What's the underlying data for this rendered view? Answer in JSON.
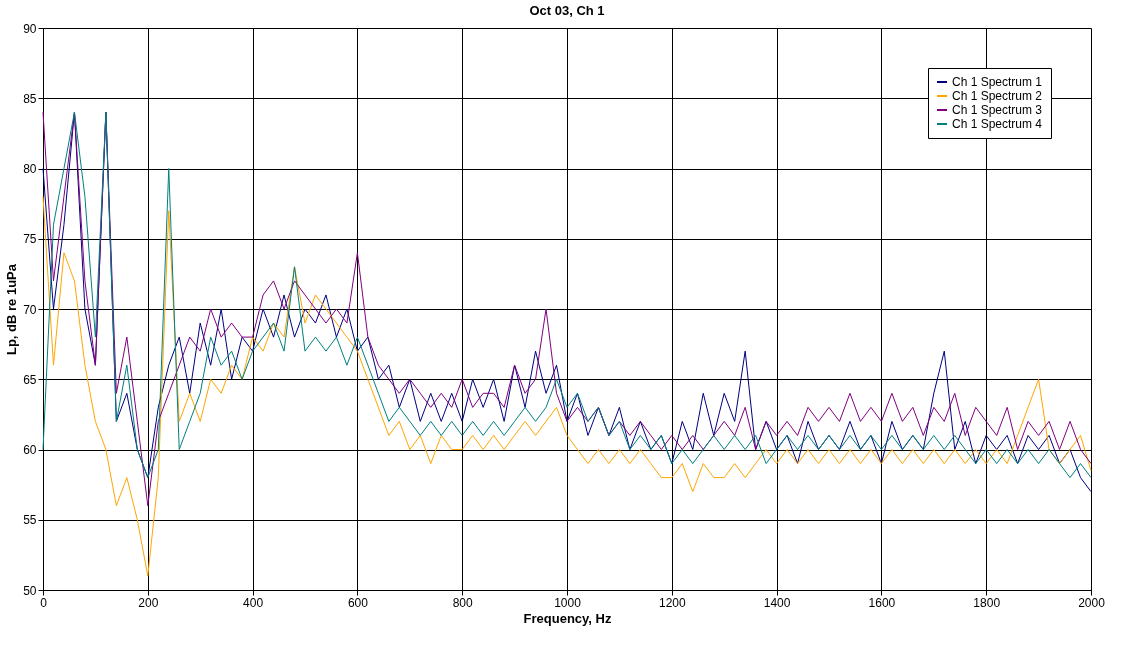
{
  "chart_data": {
    "type": "line",
    "title": "Oct 03, Ch 1",
    "xlabel": "Frequency, Hz",
    "ylabel": "Lp, dB re 1uPa",
    "x": [
      0,
      20,
      40,
      60,
      80,
      100,
      120,
      140,
      160,
      180,
      200,
      220,
      240,
      260,
      280,
      300,
      320,
      340,
      360,
      380,
      400,
      420,
      440,
      460,
      480,
      500,
      520,
      540,
      560,
      580,
      600,
      620,
      640,
      660,
      680,
      700,
      720,
      740,
      760,
      780,
      800,
      820,
      840,
      860,
      880,
      900,
      920,
      940,
      960,
      980,
      1000,
      1020,
      1040,
      1060,
      1080,
      1100,
      1120,
      1140,
      1160,
      1180,
      1200,
      1220,
      1240,
      1260,
      1280,
      1300,
      1320,
      1340,
      1360,
      1380,
      1400,
      1420,
      1440,
      1460,
      1480,
      1500,
      1520,
      1540,
      1560,
      1580,
      1600,
      1620,
      1640,
      1660,
      1680,
      1700,
      1720,
      1740,
      1760,
      1780,
      1800,
      1820,
      1840,
      1860,
      1880,
      1900,
      1920,
      1940,
      1960,
      1980,
      2000
    ],
    "series": [
      {
        "name": "Ch 1 Spectrum 1",
        "color": "#000080",
        "values": [
          80,
          70,
          76,
          84,
          70,
          66,
          84,
          62,
          64,
          60,
          58,
          63,
          66,
          68,
          64,
          69,
          66,
          70,
          65,
          68,
          67,
          70,
          68,
          71,
          68,
          70,
          69,
          71,
          68,
          70,
          67,
          68,
          65,
          66,
          63,
          65,
          62,
          64,
          62,
          64,
          62,
          65,
          63,
          65,
          62,
          66,
          63,
          67,
          64,
          66,
          62,
          64,
          61,
          63,
          61,
          63,
          60,
          62,
          60,
          61,
          59,
          62,
          60,
          64,
          61,
          64,
          62,
          67,
          60,
          62,
          60,
          61,
          59,
          62,
          60,
          61,
          60,
          62,
          60,
          61,
          59,
          62,
          60,
          61,
          60,
          64,
          67,
          60,
          62,
          59,
          61,
          60,
          61,
          59,
          61,
          60,
          61,
          59,
          60,
          58,
          57
        ]
      },
      {
        "name": "Ch 1 Spectrum 2",
        "color": "#ffa500",
        "values": [
          78,
          66,
          74,
          72,
          66,
          62,
          60,
          56,
          58,
          55,
          51,
          58,
          77,
          62,
          64,
          62,
          65,
          64,
          66,
          65,
          68,
          67,
          69,
          68,
          73,
          69,
          71,
          70,
          69,
          68,
          67,
          65,
          63,
          61,
          62,
          60,
          61,
          59,
          61,
          60,
          60,
          61,
          60,
          61,
          60,
          61,
          62,
          61,
          62,
          63,
          61,
          60,
          59,
          60,
          59,
          60,
          59,
          60,
          59,
          58,
          58,
          59,
          57,
          59,
          58,
          58,
          59,
          58,
          59,
          60,
          59,
          60,
          59,
          60,
          59,
          60,
          59,
          60,
          59,
          60,
          59,
          60,
          59,
          60,
          59,
          60,
          59,
          60,
          59,
          60,
          59,
          60,
          59,
          61,
          63,
          65,
          60,
          59,
          60,
          61,
          58.5
        ]
      },
      {
        "name": "Ch 1 Spectrum 3",
        "color": "#800080",
        "values": [
          84,
          72,
          78,
          84,
          72,
          66,
          84,
          64,
          68,
          62,
          56,
          62,
          64,
          66,
          68,
          67,
          70,
          68,
          69,
          68,
          68,
          71,
          72,
          70,
          72,
          71,
          70,
          69,
          70,
          69,
          74,
          68,
          66,
          65,
          64,
          65,
          64,
          63,
          64,
          63,
          65,
          63,
          64,
          64,
          63,
          66,
          64,
          65,
          70,
          64,
          62,
          63,
          62,
          63,
          61,
          62,
          61,
          62,
          61,
          60,
          61,
          60,
          61,
          60,
          61,
          62,
          61,
          63,
          60,
          62,
          61,
          62,
          61,
          63,
          62,
          63,
          62,
          64,
          62,
          63,
          62,
          64,
          62,
          63,
          61,
          63,
          62,
          64,
          61,
          63,
          62,
          61,
          63,
          60,
          62,
          61,
          62,
          60,
          62,
          60,
          59
        ]
      },
      {
        "name": "Ch 1 Spectrum 4",
        "color": "#008080",
        "values": [
          60,
          76,
          80,
          84,
          78,
          68,
          84,
          62,
          66,
          60,
          58,
          60,
          80,
          60,
          62,
          64,
          68,
          66,
          67,
          65,
          67,
          68,
          69,
          67,
          73,
          67,
          68,
          67,
          68,
          66,
          68,
          66,
          64,
          62,
          63,
          62,
          61,
          62,
          61,
          62,
          61,
          62,
          61,
          62,
          61,
          62,
          63,
          62,
          63,
          65,
          63,
          64,
          62,
          63,
          61,
          62,
          60,
          61,
          60,
          61,
          59,
          60,
          59,
          60,
          61,
          60,
          61,
          60,
          61,
          59,
          60,
          61,
          60,
          61,
          60,
          61,
          60,
          61,
          60,
          61,
          60,
          61,
          60,
          61,
          60,
          61,
          60,
          61,
          60,
          59,
          60,
          59,
          60,
          59,
          60,
          59,
          60,
          59,
          58,
          59,
          58
        ]
      }
    ],
    "xlim": [
      0,
      2000
    ],
    "xticks": [
      0,
      200,
      400,
      600,
      800,
      1000,
      1200,
      1400,
      1600,
      1800,
      2000
    ],
    "ylim": [
      50,
      90
    ],
    "yticks": [
      50,
      55,
      60,
      65,
      70,
      75,
      80,
      85,
      90
    ],
    "grid": true,
    "legend": "top right"
  }
}
